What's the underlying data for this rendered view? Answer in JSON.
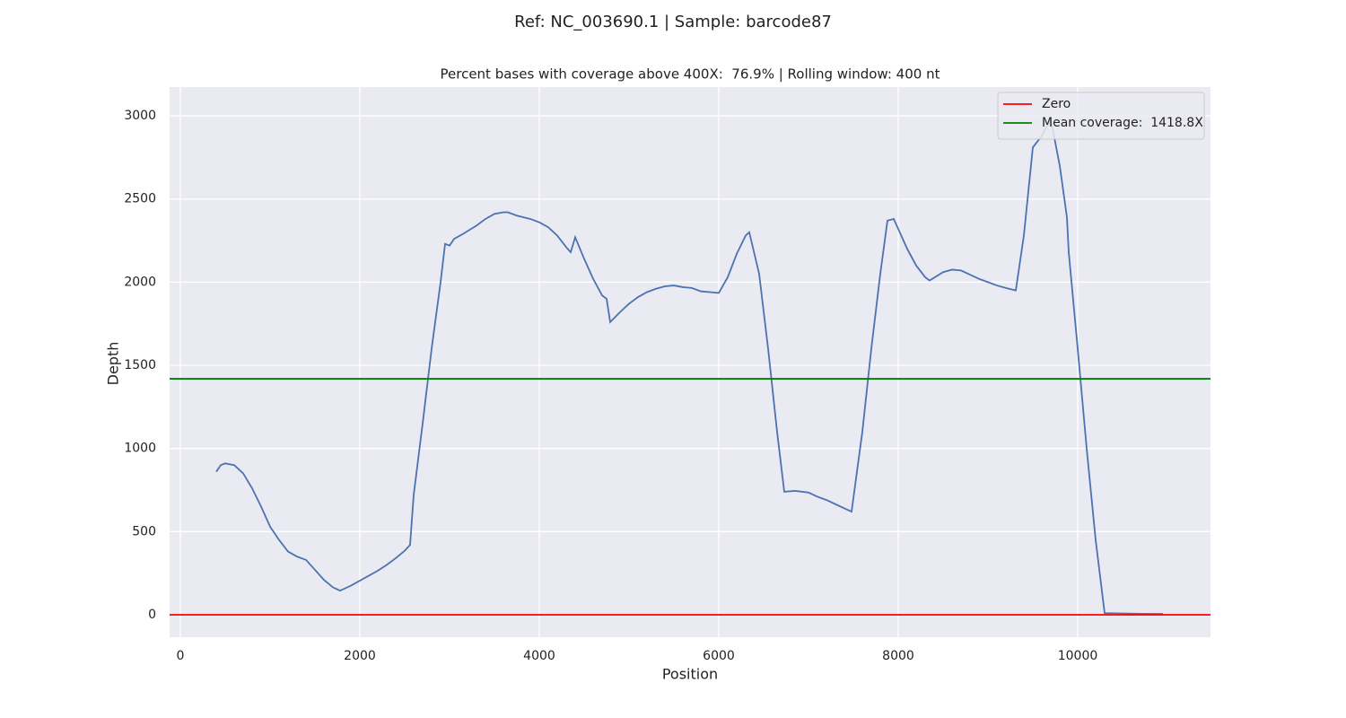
{
  "chart_data": {
    "type": "line",
    "suptitle": "Ref: NC_003690.1 | Sample: barcode87",
    "title": "Percent bases with coverage above 400X:  76.9% | Rolling window: 400 nt",
    "xlabel": "Position",
    "ylabel": "Depth",
    "x": [
      400,
      450,
      500,
      600,
      700,
      800,
      900,
      1000,
      1100,
      1200,
      1300,
      1400,
      1500,
      1600,
      1700,
      1780,
      1900,
      2000,
      2100,
      2200,
      2300,
      2400,
      2500,
      2560,
      2600,
      2700,
      2800,
      2900,
      2950,
      3000,
      3050,
      3150,
      3300,
      3400,
      3500,
      3600,
      3650,
      3750,
      3900,
      4000,
      4100,
      4200,
      4300,
      4350,
      4400,
      4500,
      4600,
      4700,
      4750,
      4790,
      4900,
      5000,
      5100,
      5200,
      5300,
      5400,
      5500,
      5600,
      5700,
      5800,
      5900,
      6000,
      6100,
      6200,
      6300,
      6340,
      6450,
      6550,
      6650,
      6730,
      6850,
      7000,
      7100,
      7200,
      7300,
      7400,
      7480,
      7600,
      7700,
      7800,
      7880,
      7950,
      8000,
      8100,
      8200,
      8300,
      8350,
      8500,
      8600,
      8700,
      8800,
      8900,
      9000,
      9100,
      9200,
      9310,
      9400,
      9500,
      9600,
      9700,
      9800,
      9880,
      9900,
      10000,
      10100,
      10200,
      10300,
      10500,
      10700,
      10950
    ],
    "series": [
      {
        "color": "#4c72b0",
        "values": [
          860,
          900,
          910,
          900,
          850,
          760,
          650,
          530,
          450,
          380,
          350,
          330,
          270,
          210,
          165,
          145,
          175,
          205,
          235,
          265,
          300,
          340,
          385,
          420,
          720,
          1150,
          1600,
          2000,
          2230,
          2220,
          2260,
          2290,
          2340,
          2380,
          2410,
          2420,
          2420,
          2400,
          2380,
          2360,
          2330,
          2280,
          2210,
          2180,
          2270,
          2140,
          2020,
          1920,
          1900,
          1760,
          1820,
          1870,
          1910,
          1940,
          1960,
          1975,
          1980,
          1970,
          1965,
          1945,
          1940,
          1935,
          2030,
          2170,
          2280,
          2300,
          2050,
          1600,
          1100,
          740,
          745,
          735,
          710,
          690,
          665,
          640,
          620,
          1100,
          1600,
          2050,
          2370,
          2380,
          2320,
          2200,
          2100,
          2030,
          2010,
          2060,
          2075,
          2070,
          2045,
          2020,
          2000,
          1980,
          1965,
          1950,
          2280,
          2810,
          2880,
          2980,
          2700,
          2390,
          2180,
          1600,
          1000,
          450,
          10,
          8,
          6,
          5
        ]
      }
    ],
    "hlines": [
      {
        "name": "Zero",
        "value": 0,
        "color": "#ff0000"
      },
      {
        "name": "Mean coverage:  1418.8X",
        "value": 1418.8,
        "color": "#008000"
      }
    ],
    "xlim": [
      -120,
      11480
    ],
    "ylim": [
      -135,
      3173
    ],
    "xticks": [
      0,
      2000,
      4000,
      6000,
      8000,
      10000
    ],
    "yticks": [
      0,
      500,
      1000,
      1500,
      2000,
      2500,
      3000
    ],
    "grid": true,
    "legend": "upper right"
  }
}
